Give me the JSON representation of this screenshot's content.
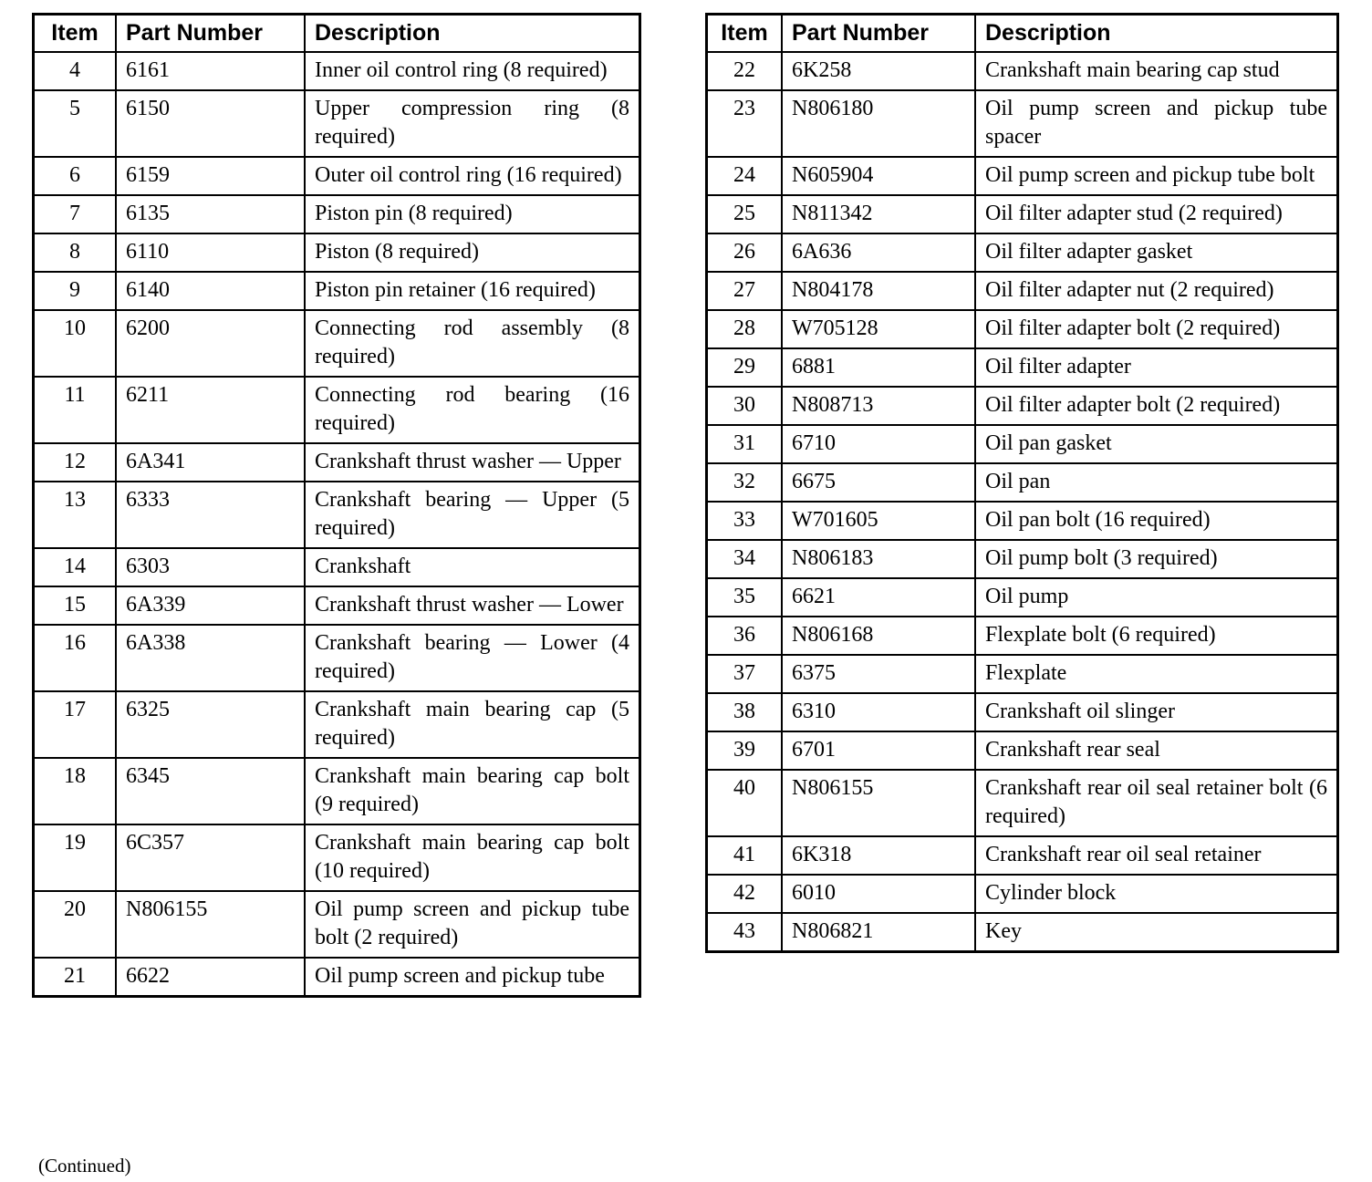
{
  "page": {
    "continued_note": "(Continued)"
  },
  "tables": [
    {
      "name": "parts-table-left",
      "headers": [
        "Item",
        "Part Number",
        "Description"
      ],
      "rows": [
        [
          "4",
          "6161",
          "Inner oil control ring (8 required)"
        ],
        [
          "5",
          "6150",
          "Upper compression ring (8 required)"
        ],
        [
          "6",
          "6159",
          "Outer oil control ring (16 required)"
        ],
        [
          "7",
          "6135",
          "Piston pin (8 required)"
        ],
        [
          "8",
          "6110",
          "Piston (8 required)"
        ],
        [
          "9",
          "6140",
          "Piston pin retainer (16 required)"
        ],
        [
          "10",
          "6200",
          "Connecting rod assembly (8 required)"
        ],
        [
          "11",
          "6211",
          "Connecting rod bearing (16 required)"
        ],
        [
          "12",
          "6A341",
          "Crankshaft thrust washer — Upper"
        ],
        [
          "13",
          "6333",
          "Crankshaft bearing — Upper (5 required)"
        ],
        [
          "14",
          "6303",
          "Crankshaft"
        ],
        [
          "15",
          "6A339",
          "Crankshaft thrust washer — Lower"
        ],
        [
          "16",
          "6A338",
          "Crankshaft bearing — Lower (4 required)"
        ],
        [
          "17",
          "6325",
          "Crankshaft main bearing cap (5 required)"
        ],
        [
          "18",
          "6345",
          "Crankshaft main bearing cap bolt (9 required)"
        ],
        [
          "19",
          "6C357",
          "Crankshaft main bearing cap bolt (10 required)"
        ],
        [
          "20",
          "N806155",
          "Oil pump screen and pickup tube bolt (2 required)"
        ],
        [
          "21",
          "6622",
          "Oil pump screen and pickup tube"
        ]
      ]
    },
    {
      "name": "parts-table-right",
      "headers": [
        "Item",
        "Part Number",
        "Description"
      ],
      "rows": [
        [
          "22",
          "6K258",
          "Crankshaft main bearing cap stud"
        ],
        [
          "23",
          "N806180",
          "Oil pump screen and pickup tube spacer"
        ],
        [
          "24",
          "N605904",
          "Oil pump screen and pickup tube bolt"
        ],
        [
          "25",
          "N811342",
          "Oil filter adapter stud (2 required)"
        ],
        [
          "26",
          "6A636",
          "Oil filter adapter gasket"
        ],
        [
          "27",
          "N804178",
          "Oil filter adapter nut (2 required)"
        ],
        [
          "28",
          "W705128",
          "Oil filter adapter bolt (2 required)"
        ],
        [
          "29",
          "6881",
          "Oil filter adapter"
        ],
        [
          "30",
          "N808713",
          "Oil filter adapter bolt (2 required)"
        ],
        [
          "31",
          "6710",
          "Oil pan gasket"
        ],
        [
          "32",
          "6675",
          "Oil pan"
        ],
        [
          "33",
          "W701605",
          "Oil pan bolt (16 required)"
        ],
        [
          "34",
          "N806183",
          "Oil pump bolt (3 required)"
        ],
        [
          "35",
          "6621",
          "Oil pump"
        ],
        [
          "36",
          "N806168",
          "Flexplate bolt (6 required)"
        ],
        [
          "37",
          "6375",
          "Flexplate"
        ],
        [
          "38",
          "6310",
          "Crankshaft oil slinger"
        ],
        [
          "39",
          "6701",
          "Crankshaft rear seal"
        ],
        [
          "40",
          "N806155",
          "Crankshaft rear oil seal retainer bolt (6 required)"
        ],
        [
          "41",
          "6K318",
          "Crankshaft rear oil seal retainer"
        ],
        [
          "42",
          "6010",
          "Cylinder block"
        ],
        [
          "43",
          "N806821",
          "Key"
        ]
      ]
    }
  ]
}
